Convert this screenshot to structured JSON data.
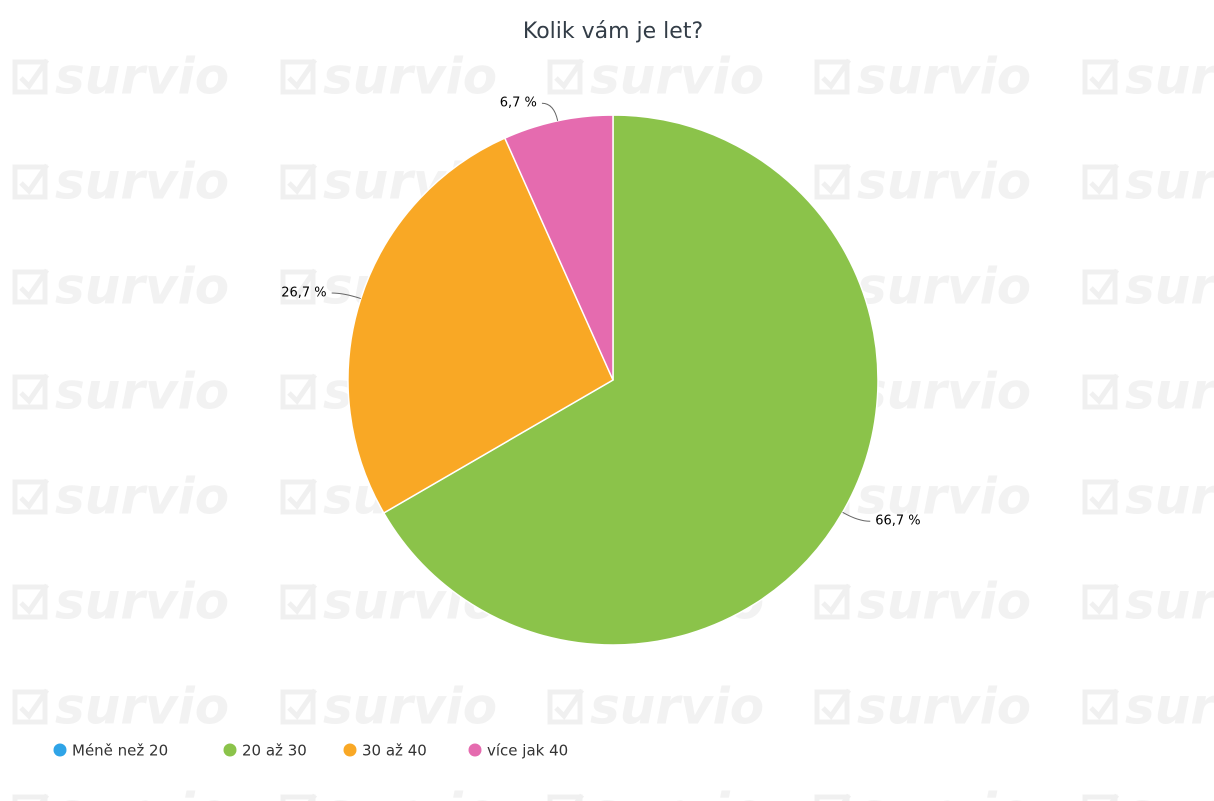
{
  "watermark": "survio",
  "chart_data": {
    "type": "pie",
    "title": "Kolik vám je let?",
    "categories": [
      "Méně než 20",
      "20 až 30",
      "30 až 40",
      "více jak 40"
    ],
    "values": [
      0,
      66.7,
      26.7,
      6.7
    ],
    "value_labels": [
      null,
      "66,7 %",
      "26,7 %",
      "6,7 %"
    ],
    "colors": [
      "#2fa4e7",
      "#8bc34a",
      "#f9a825",
      "#e56baf"
    ],
    "legend": "bottom-left"
  }
}
